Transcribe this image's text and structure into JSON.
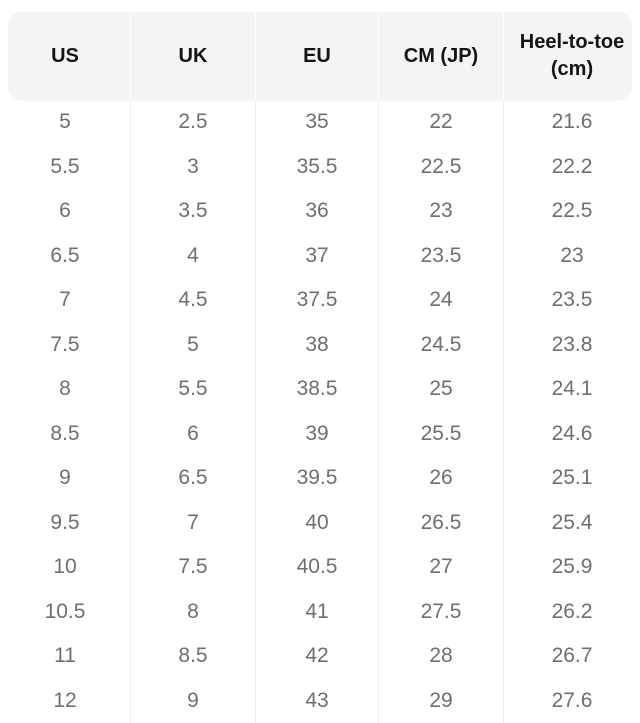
{
  "chart_data": {
    "type": "table",
    "title": "",
    "columns": [
      "US",
      "UK",
      "EU",
      "CM (JP)",
      "Heel-to-toe (cm)"
    ],
    "rows": [
      [
        "5",
        "2.5",
        "35",
        "22",
        "21.6"
      ],
      [
        "5.5",
        "3",
        "35.5",
        "22.5",
        "22.2"
      ],
      [
        "6",
        "3.5",
        "36",
        "23",
        "22.5"
      ],
      [
        "6.5",
        "4",
        "37",
        "23.5",
        "23"
      ],
      [
        "7",
        "4.5",
        "37.5",
        "24",
        "23.5"
      ],
      [
        "7.5",
        "5",
        "38",
        "24.5",
        "23.8"
      ],
      [
        "8",
        "5.5",
        "38.5",
        "25",
        "24.1"
      ],
      [
        "8.5",
        "6",
        "39",
        "25.5",
        "24.6"
      ],
      [
        "9",
        "6.5",
        "39.5",
        "26",
        "25.1"
      ],
      [
        "9.5",
        "7",
        "40",
        "26.5",
        "25.4"
      ],
      [
        "10",
        "7.5",
        "40.5",
        "27",
        "25.9"
      ],
      [
        "10.5",
        "8",
        "41",
        "27.5",
        "26.2"
      ],
      [
        "11",
        "8.5",
        "42",
        "28",
        "26.7"
      ],
      [
        "12",
        "9",
        "43",
        "29",
        "27.6"
      ]
    ]
  },
  "colors": {
    "header_bg": "#f5f4f2",
    "header_text": "#141414",
    "cell_text": "#6f6f6f",
    "divider": "#ededed",
    "page_bg": "#ffffff"
  }
}
